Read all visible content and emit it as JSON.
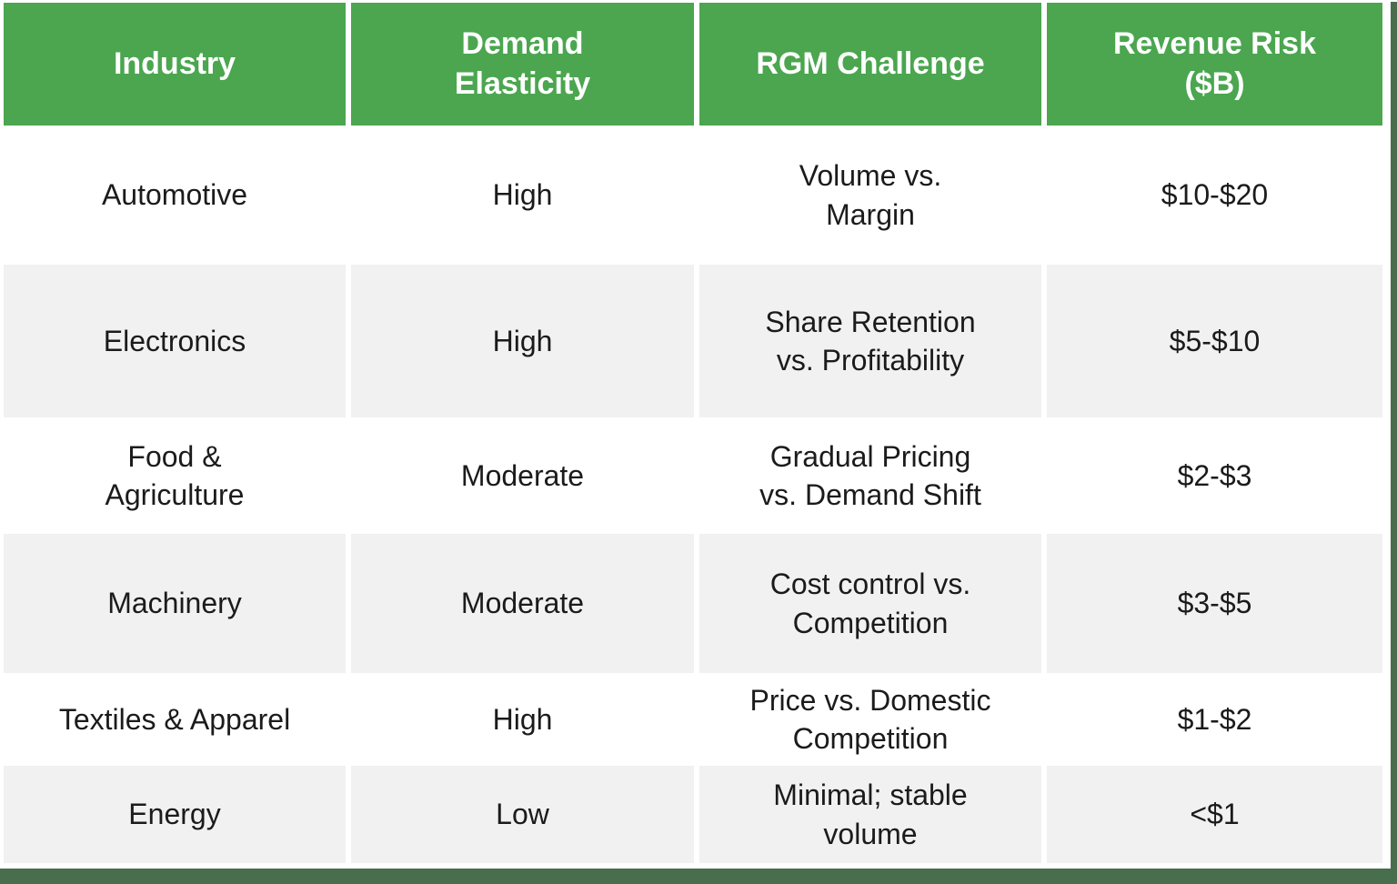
{
  "table": {
    "header": [
      "Industry",
      "Demand\nElasticity",
      "RGM Challenge",
      "Revenue Risk\n($B)"
    ],
    "rows": [
      {
        "industry": "Automotive",
        "elasticity": "High",
        "challenge": "Volume vs.\nMargin",
        "risk": "$10-$20"
      },
      {
        "industry": "Electronics",
        "elasticity": "High",
        "challenge": "Share Retention\nvs. Profitability",
        "risk": "$5-$10"
      },
      {
        "industry": "Food &\nAgriculture",
        "elasticity": "Moderate",
        "challenge": "Gradual Pricing\nvs. Demand Shift",
        "risk": "$2-$3"
      },
      {
        "industry": "Machinery",
        "elasticity": "Moderate",
        "challenge": "Cost control vs.\nCompetition",
        "risk": "$3-$5"
      },
      {
        "industry": "Textiles & Apparel",
        "elasticity": "High",
        "challenge": "Price vs. Domestic\nCompetition",
        "risk": "$1-$2"
      },
      {
        "industry": "Energy",
        "elasticity": "Low",
        "challenge": "Minimal; stable\nvolume",
        "risk": "<$1"
      }
    ]
  },
  "chart_data": {
    "type": "table",
    "columns": [
      "Industry",
      "Demand Elasticity",
      "RGM Challenge",
      "Revenue Risk ($B)"
    ],
    "rows": [
      [
        "Automotive",
        "High",
        "Volume vs. Margin",
        "$10-$20"
      ],
      [
        "Electronics",
        "High",
        "Share Retention vs. Profitability",
        "$5-$10"
      ],
      [
        "Food & Agriculture",
        "Moderate",
        "Gradual Pricing vs. Demand Shift",
        "$2-$3"
      ],
      [
        "Machinery",
        "Moderate",
        "Cost control vs. Competition",
        "$3-$5"
      ],
      [
        "Textiles & Apparel",
        "High",
        "Price vs. Domestic Competition",
        "$1-$2"
      ],
      [
        "Energy",
        "Low",
        "Minimal; stable volume",
        "<$1"
      ]
    ]
  },
  "colors": {
    "header_bg": "#4BA64F",
    "accent_dark": "#486E4E",
    "row_alt_bg": "#F1F1F1",
    "row_bg": "#FFFFFF",
    "header_text": "#FFFFFF",
    "body_text": "#1B1B1B"
  }
}
